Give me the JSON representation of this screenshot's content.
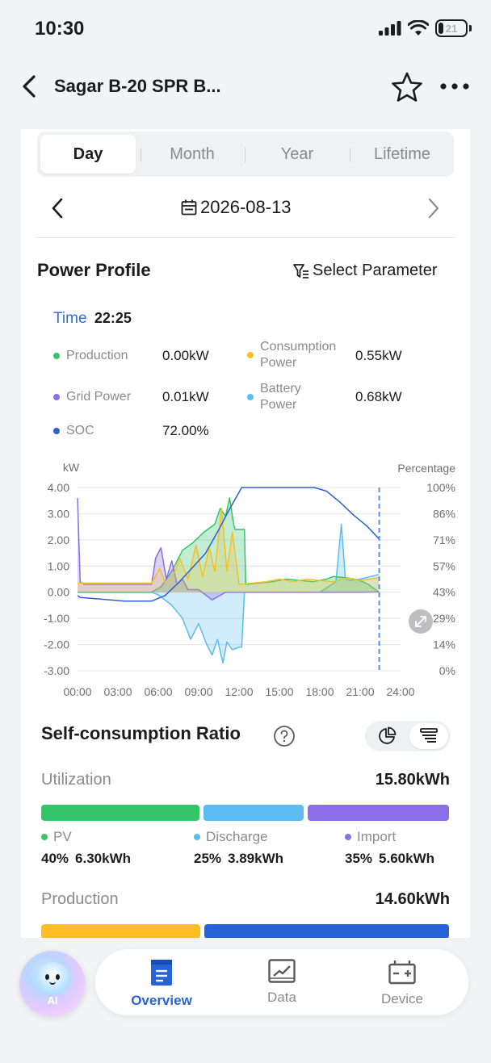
{
  "status": {
    "time": "10:30",
    "battery_level": "21"
  },
  "header": {
    "title": "Sagar B-20 SPR B..."
  },
  "tabs": [
    {
      "label": "Day",
      "active": true
    },
    {
      "label": "Month",
      "active": false
    },
    {
      "label": "Year",
      "active": false
    },
    {
      "label": "Lifetime",
      "active": false
    }
  ],
  "date_nav": {
    "date": "2026-08-13"
  },
  "power_profile": {
    "title": "Power Profile",
    "select_parameter": "Select Parameter",
    "time_label": "Time",
    "time_value": "22:25",
    "legend": [
      {
        "name": "Production",
        "value": "0.00kW",
        "color": "#34c46a"
      },
      {
        "name": "Consumption Power",
        "value": "0.55kW",
        "color": "#f5c02a"
      },
      {
        "name": "Grid Power",
        "value": "0.01kW",
        "color": "#8b6ee8"
      },
      {
        "name": "Battery Power",
        "value": "0.68kW",
        "color": "#5bbcf2"
      },
      {
        "name": "SOC",
        "value": "72.00%",
        "color": "#2f5fd0"
      }
    ]
  },
  "chart_data": {
    "type": "line",
    "left_unit": "kW",
    "right_unit": "Percentage",
    "y_ticks_left": [
      "4.00",
      "3.00",
      "2.00",
      "1.00",
      "0.00",
      "-1.00",
      "-2.00",
      "-3.00"
    ],
    "y_ticks_right": [
      "100%",
      "86%",
      "71%",
      "57%",
      "43%",
      "29%",
      "14%",
      "0%"
    ],
    "x_ticks": [
      "00:00",
      "03:00",
      "06:00",
      "09:00",
      "12:00",
      "15:00",
      "18:00",
      "21:00",
      "24:00"
    ],
    "ylim_left": [
      -3,
      4
    ],
    "ylim_right": [
      0,
      100
    ],
    "cursor_time": "22:25",
    "series": [
      {
        "name": "Production",
        "color": "#34c46a",
        "x": [
          0,
          5.5,
          6.2,
          7,
          7.8,
          8.6,
          9.4,
          10.2,
          10.6,
          11,
          11.3,
          11.6,
          11.7,
          12.1,
          12.4,
          12.5,
          13.5,
          14.5,
          15.5,
          16.5,
          17.5,
          18.5,
          19,
          20,
          20.6,
          21.2,
          21.6,
          22.4
        ],
        "y": [
          0,
          0,
          0.2,
          0.8,
          1.6,
          1.9,
          2.3,
          2.6,
          3.2,
          2.9,
          3.6,
          2.6,
          2.4,
          2.4,
          2.4,
          0.3,
          0.35,
          0.4,
          0.5,
          0.45,
          0.4,
          0.5,
          0.6,
          0.55,
          0.5,
          0.4,
          0.3,
          0
        ]
      },
      {
        "name": "Consumption Power",
        "color": "#f5c02a",
        "x": [
          0,
          3,
          5.5,
          6.1,
          6.5,
          7,
          7.6,
          8.2,
          8.8,
          9.3,
          9.8,
          10.2,
          10.7,
          11.1,
          11.5,
          12,
          13,
          14,
          15,
          16,
          17,
          18,
          19,
          20,
          21,
          22.4
        ],
        "y": [
          0.35,
          0.35,
          0.35,
          0.9,
          0.4,
          0.5,
          1.3,
          0.5,
          1.8,
          0.6,
          1.7,
          0.8,
          3.2,
          0.8,
          2.3,
          0.3,
          0.35,
          0.4,
          0.5,
          0.4,
          0.5,
          0.45,
          0.4,
          0.55,
          0.45,
          0.55
        ]
      },
      {
        "name": "Grid Power",
        "color": "#8b6ee8",
        "x": [
          0,
          0.2,
          0.5,
          3,
          5.5,
          5.8,
          6.2,
          6.6,
          7,
          7.4,
          7.8,
          8.2,
          9,
          10,
          11,
          12,
          15,
          18,
          20,
          21,
          22.4
        ],
        "y": [
          3.6,
          0.4,
          0.3,
          0.3,
          0.3,
          1.3,
          1.7,
          0.5,
          1.2,
          0.3,
          0.5,
          0.1,
          0.1,
          -0.3,
          0,
          0,
          0,
          0,
          0,
          0,
          0.01
        ]
      },
      {
        "name": "Battery Power",
        "color": "#5bbcf2",
        "x": [
          0,
          5.5,
          6,
          7,
          7.8,
          8.4,
          9,
          9.6,
          10,
          10.4,
          10.8,
          11.1,
          11.5,
          12,
          12.2,
          12.4,
          14,
          16,
          18,
          19.2,
          19.6,
          19.9,
          20.3,
          21,
          22.4
        ],
        "y": [
          0,
          0,
          -0.1,
          -0.5,
          -1.0,
          -1.8,
          -1.2,
          -2.0,
          -2.4,
          -1.8,
          -2.7,
          -1.9,
          -2.2,
          -2.1,
          -2.1,
          0,
          0,
          0,
          0,
          0.4,
          2.6,
          0.5,
          0.45,
          0.5,
          0.68
        ]
      },
      {
        "name": "SOC",
        "color": "#2f5fd0",
        "axis": "right",
        "x": [
          0,
          0.2,
          3.5,
          5.5,
          6.5,
          7.5,
          8.5,
          9.5,
          10.5,
          11.2,
          12.2,
          17.6,
          18.5,
          19.5,
          20.5,
          21.5,
          22.4
        ],
        "y": [
          41,
          40,
          38,
          38,
          41,
          48,
          56,
          64,
          77,
          87,
          100,
          100,
          98,
          92,
          85,
          79,
          72
        ]
      }
    ]
  },
  "self_consumption": {
    "title": "Self-consumption Ratio",
    "utilization_label": "Utilization",
    "utilization_total": "15.80kWh",
    "utilization_parts": [
      {
        "name": "PV",
        "percent": "40%",
        "value": "6.30kWh",
        "color": "#34c46a"
      },
      {
        "name": "Discharge",
        "percent": "25%",
        "value": "3.89kWh",
        "color": "#5bbcf2"
      },
      {
        "name": "Import",
        "percent": "35%",
        "value": "5.60kWh",
        "color": "#8b6ee8"
      }
    ],
    "production_label": "Production",
    "production_total": "14.60kWh",
    "production_bar_fractions": [
      0.39,
      0.61
    ],
    "production_bar_colors": [
      "#fbbf24",
      "#2563d6"
    ]
  },
  "bottom_nav": {
    "ai_label": "AI",
    "items": [
      {
        "label": "Overview",
        "active": true
      },
      {
        "label": "Data",
        "active": false
      },
      {
        "label": "Device",
        "active": false
      }
    ]
  }
}
